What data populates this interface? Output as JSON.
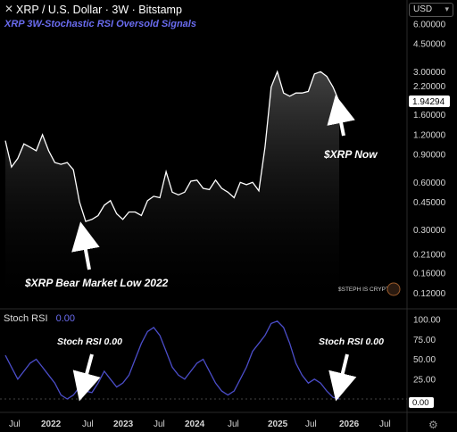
{
  "header": {
    "close_glyph": "✕",
    "title": "XRP / U.S. Dollar · 3W · Bitstamp",
    "subtitle": "XRP 3W-Stochastic RSI Oversold Signals"
  },
  "currency_selector": {
    "label": "USD",
    "chevron": "▾"
  },
  "watermark": "$STEPH IS CRYPTO",
  "settings_icon": "⚙",
  "colors": {
    "background": "#000000",
    "price_line": "#ffffff",
    "rsi_line": "#4b4dc9",
    "accent": "#6a6cf0",
    "annotation": "#ffffff",
    "current_price_badge": "#ffffff"
  },
  "price_axis": {
    "scale": "log",
    "ticks": [
      "6.00000",
      "4.50000",
      "3.00000",
      "2.20000",
      "1.60000",
      "1.20000",
      "0.90000",
      "0.60000",
      "0.45000",
      "0.30000",
      "0.21000",
      "0.16000",
      "0.12000"
    ],
    "current_price": "1.94294"
  },
  "rsi_axis": {
    "ticks": [
      "100.00",
      "75.00",
      "50.00",
      "25.00"
    ],
    "current_value": "0.00"
  },
  "time_axis": {
    "labels": [
      "Jul",
      "2022",
      "Jul",
      "2023",
      "Jul",
      "2024",
      "Jul",
      "2025",
      "Jul",
      "2026",
      "Jul"
    ]
  },
  "stoch_rsi": {
    "label": "Stoch RSI",
    "value": "0.00"
  },
  "annotations": {
    "now": "$XRP Now",
    "bear_low": "$XRP Bear Market Low 2022",
    "stoch_left": "Stoch RSI 0.00",
    "stoch_right": "Stoch RSI 0.00"
  },
  "chart_data": [
    {
      "type": "line",
      "title": "XRP / U.S. Dollar · 3W · Bitstamp",
      "subtitle": "XRP 3W-Stochastic RSI Oversold Signals",
      "y_scale": "log",
      "ylim": [
        0.11,
        7.0
      ],
      "grid": false,
      "x": [
        "2021-05",
        "2021-06",
        "2021-07",
        "2021-08",
        "2021-09",
        "2021-10",
        "2021-11",
        "2021-12",
        "2022-01",
        "2022-02",
        "2022-03",
        "2022-04",
        "2022-05",
        "2022-06",
        "2022-07",
        "2022-08",
        "2022-09",
        "2022-10",
        "2022-11",
        "2022-12",
        "2023-01",
        "2023-02",
        "2023-03",
        "2023-04",
        "2023-05",
        "2023-06",
        "2023-07",
        "2023-08",
        "2023-09",
        "2023-10",
        "2023-11",
        "2023-12",
        "2024-01",
        "2024-02",
        "2024-03",
        "2024-04",
        "2024-05",
        "2024-06",
        "2024-07",
        "2024-08",
        "2024-09",
        "2024-10",
        "2024-11",
        "2024-12",
        "2025-01",
        "2025-02",
        "2025-03",
        "2025-04",
        "2025-05",
        "2025-06",
        "2025-07",
        "2025-08",
        "2025-09",
        "2025-10",
        "2025-11"
      ],
      "series": [
        {
          "values": [
            1.1,
            0.75,
            0.85,
            1.05,
            1.0,
            0.95,
            1.2,
            0.95,
            0.8,
            0.78,
            0.8,
            0.72,
            0.45,
            0.34,
            0.35,
            0.37,
            0.43,
            0.46,
            0.38,
            0.35,
            0.39,
            0.39,
            0.37,
            0.46,
            0.49,
            0.48,
            0.7,
            0.52,
            0.5,
            0.52,
            0.61,
            0.62,
            0.55,
            0.54,
            0.62,
            0.55,
            0.52,
            0.48,
            0.6,
            0.58,
            0.6,
            0.53,
            1.0,
            2.4,
            3.0,
            2.2,
            2.1,
            2.2,
            2.2,
            2.25,
            2.9,
            3.0,
            2.8,
            2.4,
            1.94
          ]
        }
      ]
    },
    {
      "type": "line",
      "title": "Stoch RSI",
      "ylim": [
        0,
        100
      ],
      "grid": false,
      "x": [
        "2021-05",
        "2021-06",
        "2021-07",
        "2021-08",
        "2021-09",
        "2021-10",
        "2021-11",
        "2021-12",
        "2022-01",
        "2022-02",
        "2022-03",
        "2022-04",
        "2022-05",
        "2022-06",
        "2022-07",
        "2022-08",
        "2022-09",
        "2022-10",
        "2022-11",
        "2022-12",
        "2023-01",
        "2023-02",
        "2023-03",
        "2023-04",
        "2023-05",
        "2023-06",
        "2023-07",
        "2023-08",
        "2023-09",
        "2023-10",
        "2023-11",
        "2023-12",
        "2024-01",
        "2024-02",
        "2024-03",
        "2024-04",
        "2024-05",
        "2024-06",
        "2024-07",
        "2024-08",
        "2024-09",
        "2024-10",
        "2024-11",
        "2024-12",
        "2025-01",
        "2025-02",
        "2025-03",
        "2025-04",
        "2025-05",
        "2025-06",
        "2025-07",
        "2025-08",
        "2025-09",
        "2025-10",
        "2025-11"
      ],
      "series": [
        {
          "values": [
            55,
            40,
            25,
            35,
            45,
            50,
            40,
            30,
            20,
            5,
            0,
            5,
            15,
            10,
            8,
            20,
            35,
            25,
            15,
            20,
            30,
            50,
            70,
            85,
            90,
            80,
            60,
            40,
            30,
            25,
            35,
            45,
            50,
            35,
            20,
            10,
            5,
            10,
            25,
            40,
            60,
            70,
            80,
            95,
            98,
            90,
            70,
            45,
            30,
            20,
            25,
            20,
            10,
            2,
            0
          ]
        }
      ]
    }
  ]
}
